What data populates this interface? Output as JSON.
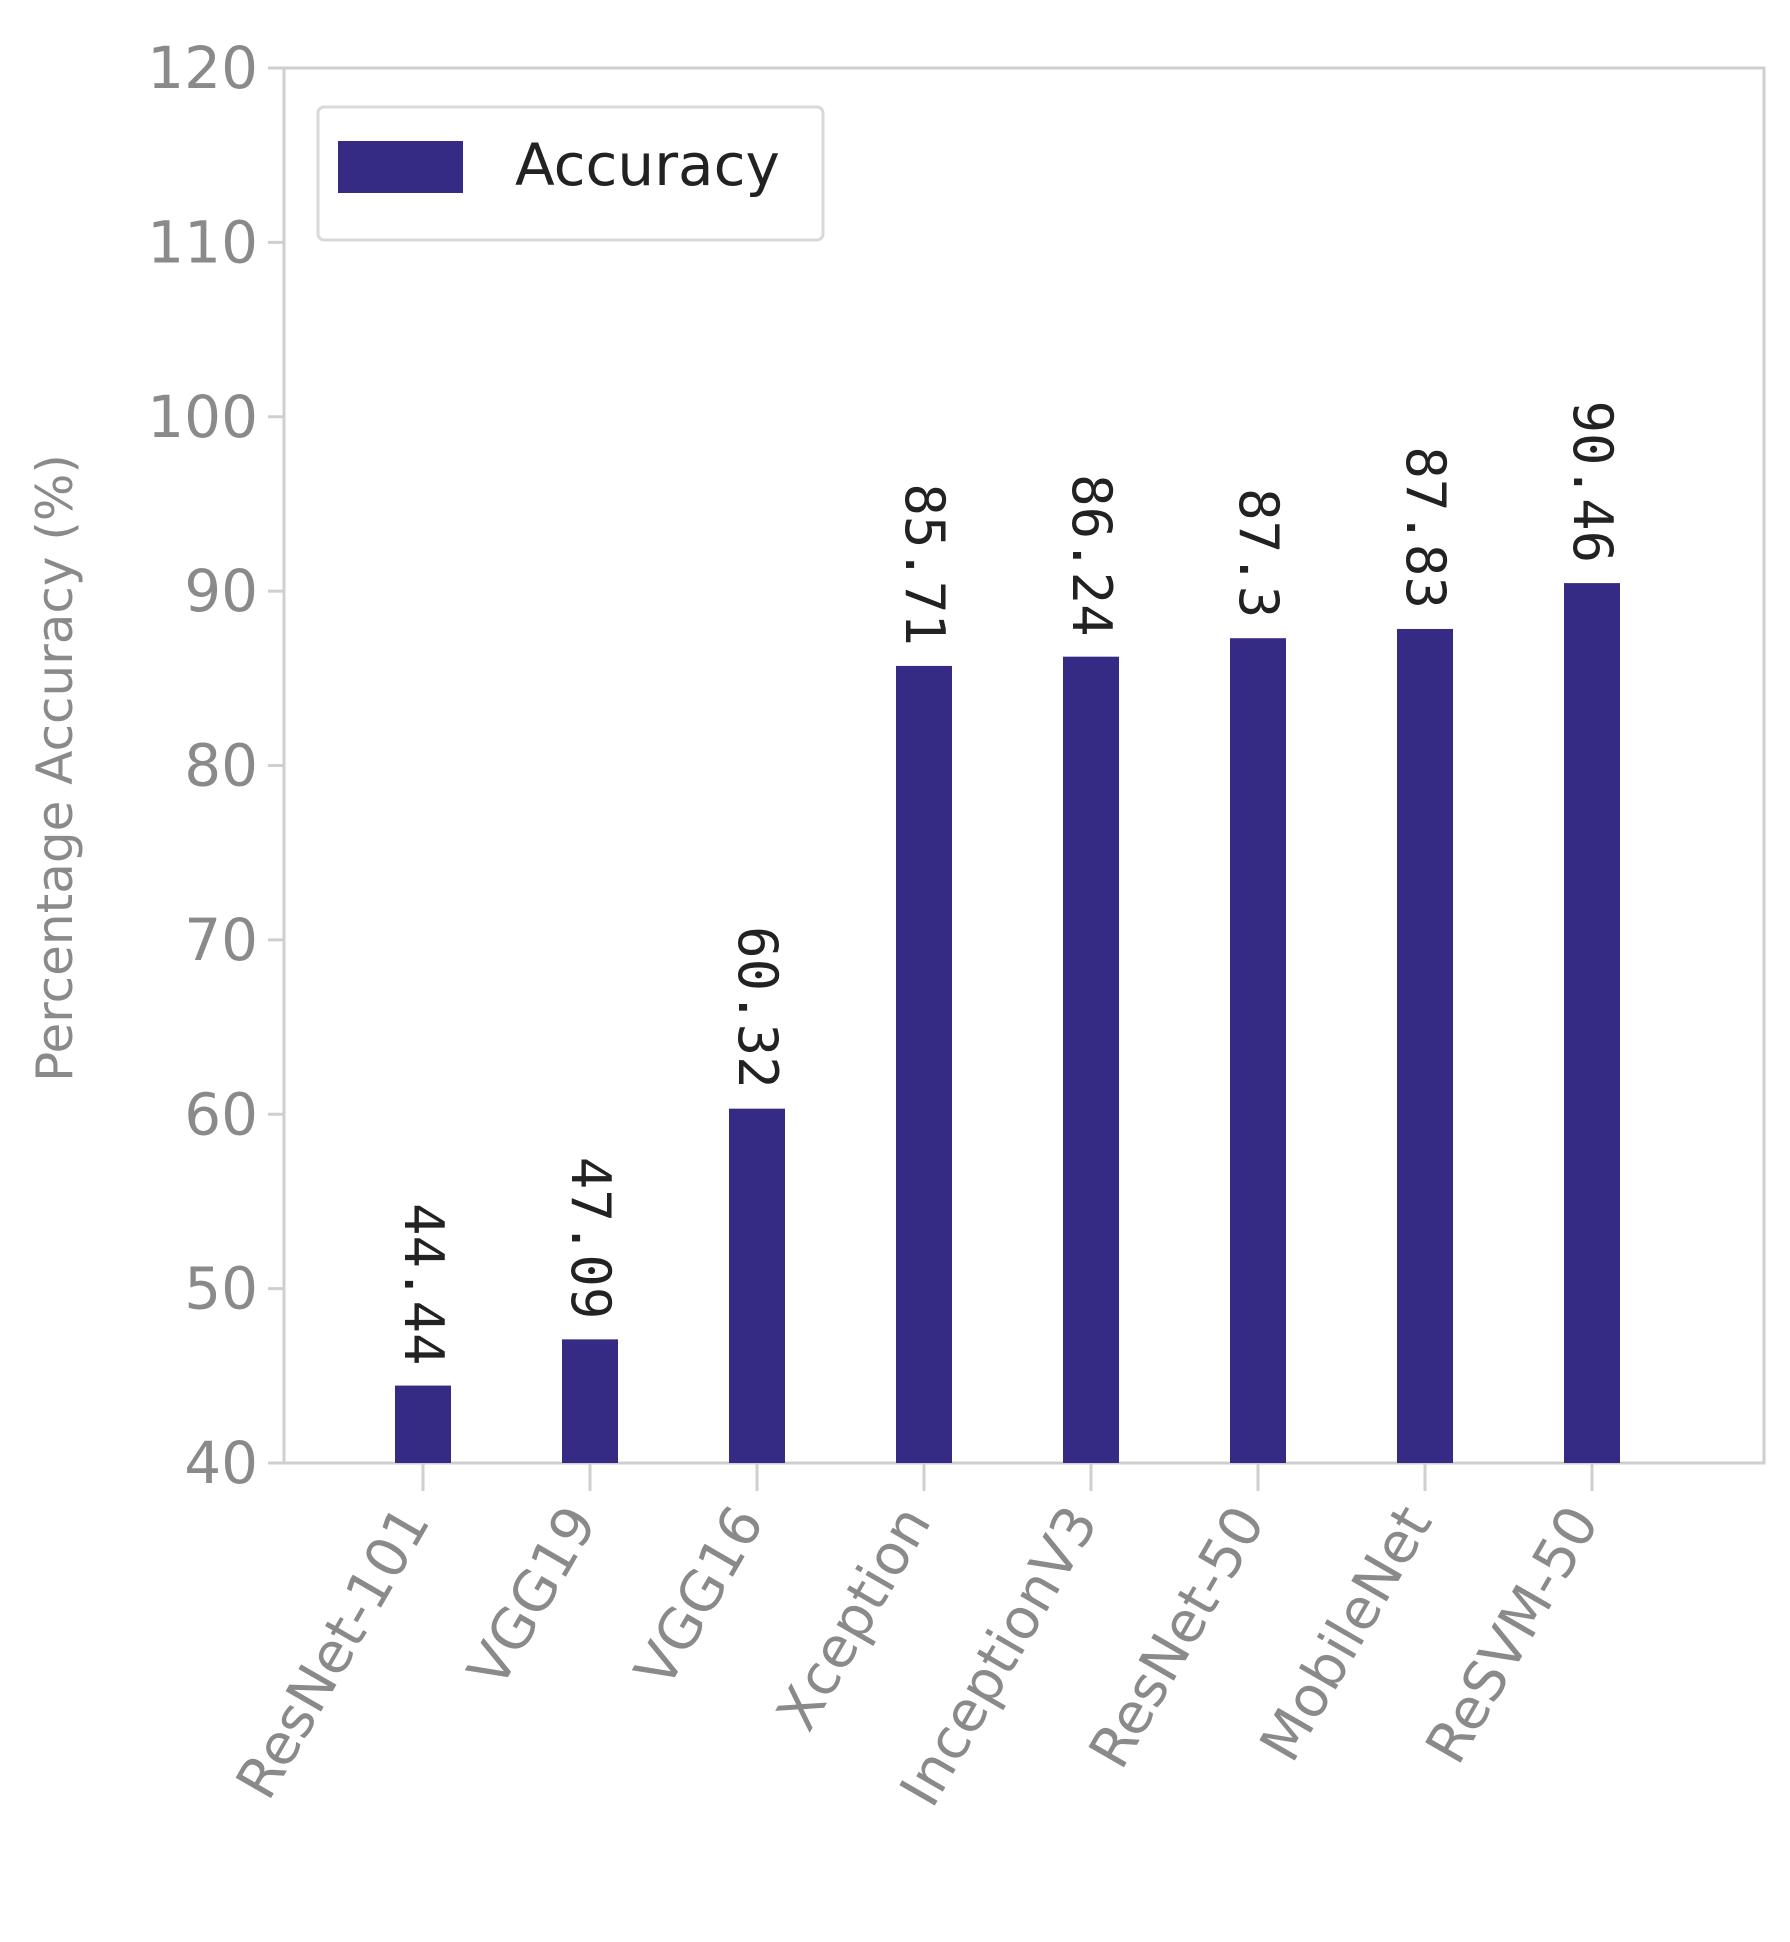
{
  "chart_data": {
    "type": "bar",
    "categories": [
      "ResNet-101",
      "VGG19",
      "VGG16",
      "Xception",
      "InceptionV3",
      "ResNet-50",
      "MobileNet",
      "ReSVM-50"
    ],
    "series": [
      {
        "name": "Accuracy",
        "values": [
          44.44,
          47.09,
          60.32,
          85.71,
          86.24,
          87.3,
          87.83,
          90.46
        ],
        "labels": [
          "44.44",
          "47.09",
          "60.32",
          "85.71",
          "86.24",
          "87.3",
          "87.83",
          "90.46"
        ]
      }
    ],
    "ylabel": "Percentage Accuracy (%)",
    "xlabel": "",
    "ylim": [
      40,
      120
    ],
    "yticks": [
      40,
      50,
      60,
      70,
      80,
      90,
      100,
      110,
      120
    ],
    "legend_position": "top-left",
    "grid": false,
    "colors": {
      "bar": "#352a84",
      "axis": "#cfcfcf",
      "tick_text": "#8a8a8a",
      "label_text": "#222222"
    }
  }
}
